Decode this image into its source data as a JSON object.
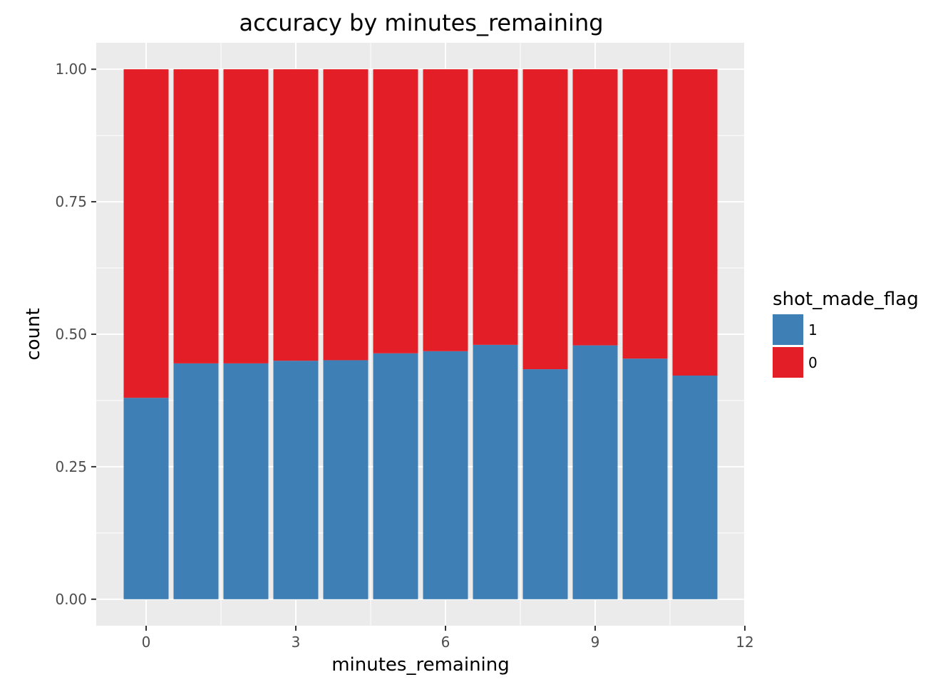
{
  "chart_data": {
    "type": "bar",
    "stacked": true,
    "position": "fill",
    "title": "accuracy by minutes_remaining",
    "xlabel": "minutes_remaining",
    "ylabel": "count",
    "x": [
      0,
      1,
      2,
      3,
      4,
      5,
      6,
      7,
      8,
      9,
      10,
      11
    ],
    "xlim": [
      -1.0,
      12.0
    ],
    "ylim": [
      -0.05,
      1.05
    ],
    "x_ticks": [
      0,
      3,
      6,
      9,
      12
    ],
    "x_tick_labels": [
      "0",
      "3",
      "6",
      "9",
      "12"
    ],
    "y_ticks": [
      0,
      0.25,
      0.5,
      0.75,
      1.0
    ],
    "y_tick_labels": [
      "0.00",
      "0.25",
      "0.50",
      "0.75",
      "1.00"
    ],
    "series": [
      {
        "name": "1",
        "color": "#3E7FB6",
        "values": [
          0.38,
          0.445,
          0.445,
          0.45,
          0.451,
          0.464,
          0.468,
          0.48,
          0.434,
          0.479,
          0.454,
          0.422
        ]
      },
      {
        "name": "0",
        "color": "#E31E26",
        "values": [
          0.62,
          0.555,
          0.555,
          0.55,
          0.549,
          0.536,
          0.532,
          0.52,
          0.566,
          0.521,
          0.546,
          0.578
        ]
      }
    ],
    "legend": {
      "title": "shot_made_flag",
      "position": "right",
      "items": [
        {
          "label": "1",
          "color": "#3E7FB6"
        },
        {
          "label": "0",
          "color": "#E31E26"
        }
      ]
    },
    "panel_background": "#EBEBEB",
    "grid": true
  }
}
